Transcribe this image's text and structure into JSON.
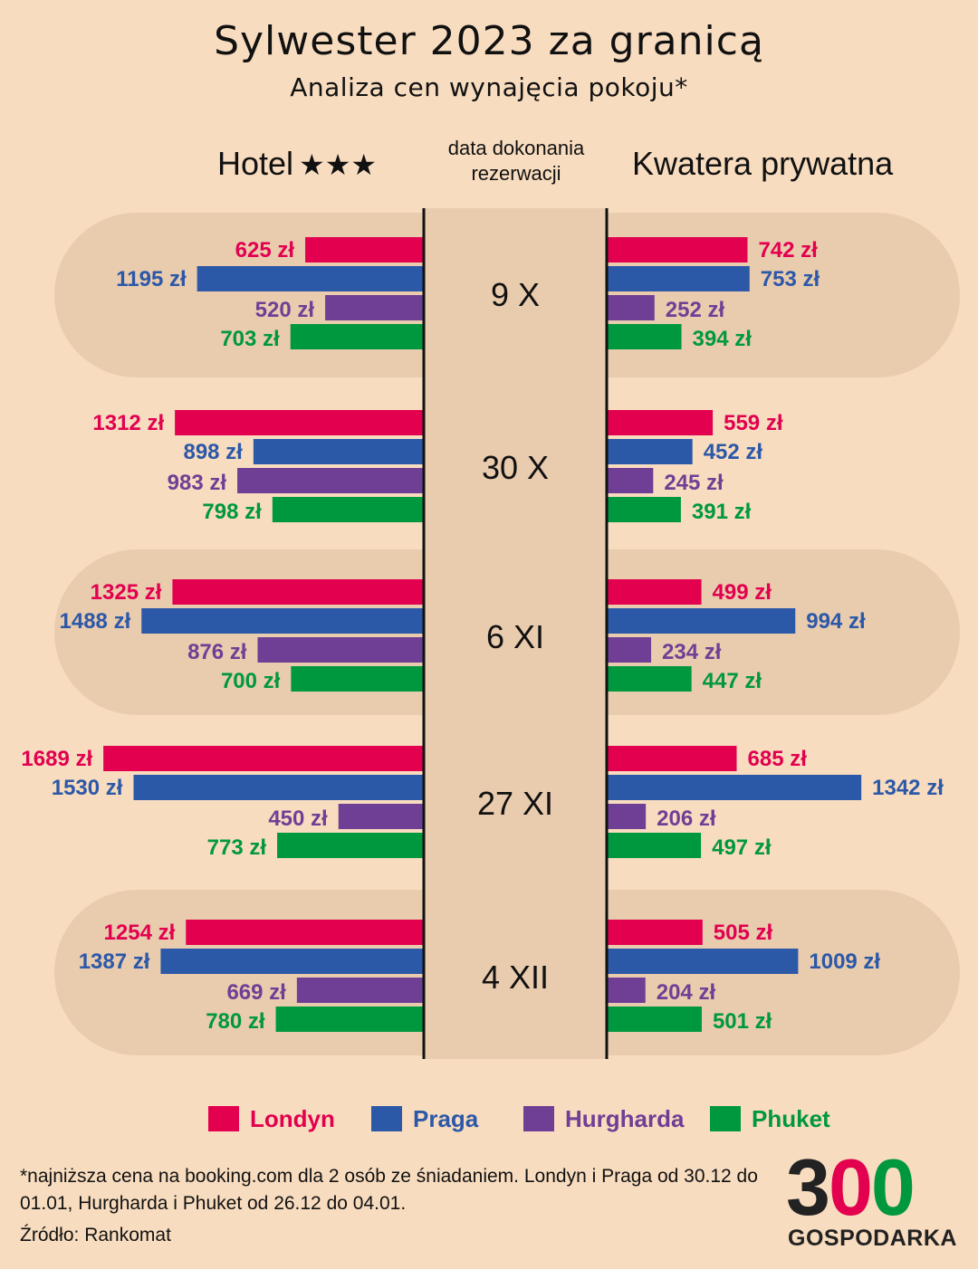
{
  "title": "Sylwester 2023 za granicą",
  "subtitle": "Analiza cen wynajęcia pokoju*",
  "headers": {
    "hotel": "Hotel",
    "hotel_stars": "★★★",
    "date": "data dokonania rezerwacji",
    "private": "Kwatera prywatna"
  },
  "colors": {
    "background": "#f8dcbf",
    "band": "#e9cbae",
    "Londyn": "#e2004f",
    "Praga": "#2c58a8",
    "Hurgharda": "#6f3f95",
    "Phuket": "#00983e"
  },
  "legend": [
    "Londyn",
    "Praga",
    "Hurgharda",
    "Phuket"
  ],
  "chart_data": {
    "type": "bar",
    "unit": "zł",
    "categories": [
      "9 X",
      "30 X",
      "6 XI",
      "27 XI",
      "4 XII"
    ],
    "panels": [
      {
        "name": "Hotel",
        "series": [
          {
            "name": "Londyn",
            "values": [
              625,
              1312,
              1325,
              1689,
              1254
            ]
          },
          {
            "name": "Praga",
            "values": [
              1195,
              898,
              1488,
              1530,
              1387
            ]
          },
          {
            "name": "Hurgharda",
            "values": [
              520,
              983,
              876,
              450,
              669
            ]
          },
          {
            "name": "Phuket",
            "values": [
              703,
              798,
              700,
              773,
              780
            ]
          }
        ]
      },
      {
        "name": "Kwatera prywatna",
        "series": [
          {
            "name": "Londyn",
            "values": [
              742,
              559,
              499,
              685,
              505
            ]
          },
          {
            "name": "Praga",
            "values": [
              753,
              452,
              994,
              1342,
              1009
            ]
          },
          {
            "name": "Hurgharda",
            "values": [
              252,
              245,
              234,
              206,
              204
            ]
          },
          {
            "name": "Phuket",
            "values": [
              394,
              391,
              447,
              497,
              501
            ]
          }
        ]
      }
    ]
  },
  "footnote": "*najniższa cena na booking.com dla 2 osób ze śniadaniem. Londyn i Praga od 30.12 do 01.01, Hurgharda i Phuket od 26.12 do 04.01.",
  "source": "Źródło: Rankomat",
  "logo": {
    "digits": "300",
    "text": "GOSPODARKA"
  }
}
